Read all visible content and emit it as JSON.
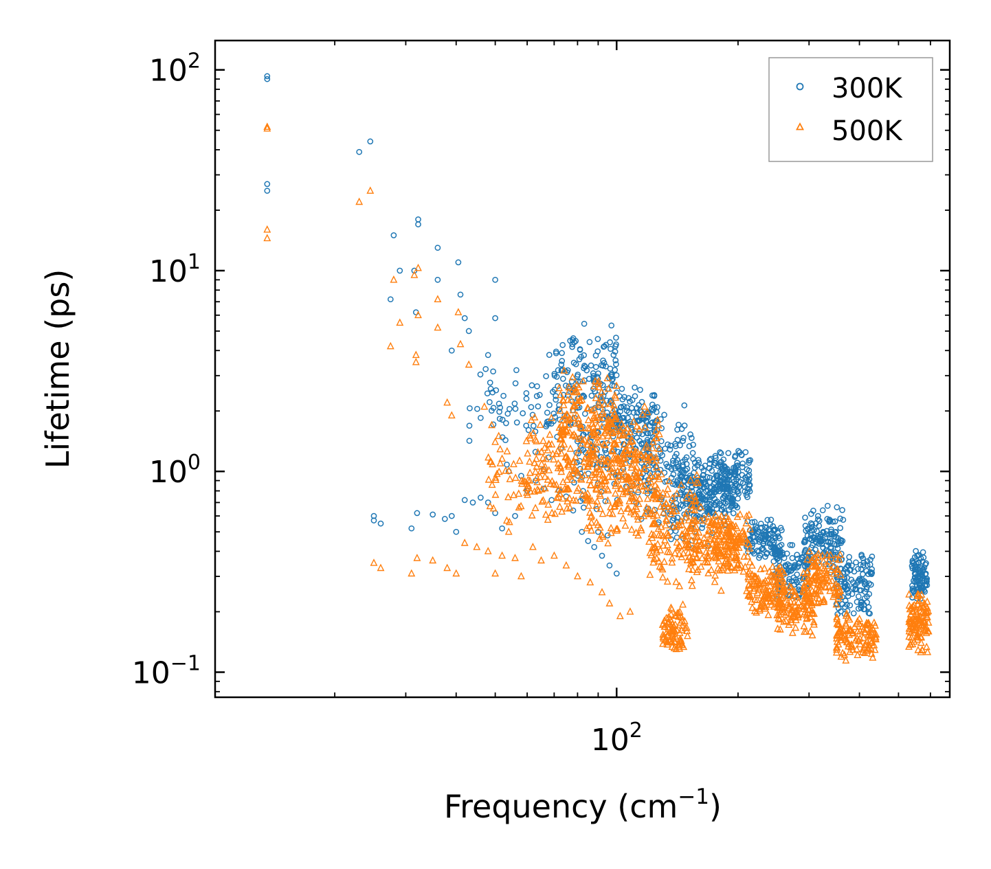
{
  "chart_data": {
    "type": "scatter",
    "title": "",
    "xlabel": "Frequency (cm",
    "xlabel_sup": "−1",
    "xlabel_suffix": ")",
    "ylabel": "Lifetime (ps)",
    "xscale": "log",
    "yscale": "log",
    "xlim": [
      10.1,
      670
    ],
    "ylim": [
      0.075,
      140
    ],
    "x_ticks": [
      {
        "value": 100,
        "base": "10",
        "exp": "2"
      }
    ],
    "y_ticks": [
      {
        "value": 0.1,
        "base": "10",
        "exp": "−1"
      },
      {
        "value": 1,
        "base": "10",
        "exp": "0"
      },
      {
        "value": 10,
        "base": "10",
        "exp": "1"
      },
      {
        "value": 100,
        "base": "10",
        "exp": "2"
      }
    ],
    "legend": {
      "position": "top-right"
    },
    "series": [
      {
        "name": "300K",
        "color": "#1f77b4",
        "marker": "circle",
        "points": [
          [
            13.6,
            93
          ],
          [
            13.6,
            90
          ],
          [
            13.6,
            27
          ],
          [
            13.6,
            25
          ],
          [
            23,
            39
          ],
          [
            24.5,
            44
          ],
          [
            28,
            15
          ],
          [
            29,
            10
          ],
          [
            27.5,
            7.2
          ],
          [
            31.5,
            10
          ],
          [
            31.8,
            6.2
          ],
          [
            32.2,
            18
          ],
          [
            32.2,
            17
          ],
          [
            36,
            13
          ],
          [
            36,
            9
          ],
          [
            39,
            4
          ],
          [
            40.5,
            11
          ],
          [
            41,
            7.6
          ],
          [
            42,
            5.8
          ],
          [
            43,
            5
          ],
          [
            48,
            3.8
          ],
          [
            50,
            9
          ],
          [
            50,
            5.8
          ],
          [
            25,
            0.6
          ],
          [
            25,
            0.57
          ],
          [
            26,
            0.55
          ],
          [
            31,
            0.52
          ],
          [
            32,
            0.62
          ],
          [
            35,
            0.61
          ],
          [
            37.5,
            0.58
          ],
          [
            39,
            0.6
          ],
          [
            40,
            0.5
          ],
          [
            42,
            0.72
          ],
          [
            44,
            0.7
          ],
          [
            46,
            0.74
          ],
          [
            48,
            0.7
          ],
          [
            50,
            0.62
          ],
          [
            52,
            0.52
          ],
          [
            54,
            1
          ],
          [
            56,
            0.6
          ],
          [
            58,
            0.95
          ],
          [
            60,
            0.8
          ],
          [
            63,
            0.9
          ],
          [
            66,
            0.82
          ],
          [
            69,
            0.72
          ],
          [
            72,
            0.8
          ],
          [
            75,
            0.75
          ],
          [
            82,
            0.5
          ],
          [
            85,
            0.45
          ],
          [
            88,
            0.42
          ],
          [
            92,
            0.38
          ],
          [
            96,
            0.34
          ],
          [
            100,
            0.31
          ],
          [
            90,
            0.5
          ],
          [
            95,
            0.48
          ]
        ],
        "ranges": [
          {
            "x": [
              43,
              75
            ],
            "y": [
              0.9,
              4.5
            ],
            "n": 70
          },
          {
            "x": [
              70,
              100
            ],
            "y": [
              1.5,
              5.6
            ],
            "n": 140
          },
          {
            "x": [
              78,
              128
            ],
            "y": [
              0.6,
              3.0
            ],
            "n": 170
          },
          {
            "x": [
              96,
              125
            ],
            "y": [
              1.2,
              2.7
            ],
            "n": 80
          },
          {
            "x": [
              115,
              155
            ],
            "y": [
              0.5,
              2.3
            ],
            "n": 110
          },
          {
            "x": [
              135,
              175
            ],
            "y": [
              0.4,
              1.2
            ],
            "n": 90
          },
          {
            "x": [
              140,
              200
            ],
            "y": [
              0.6,
              1.25
            ],
            "n": 110
          },
          {
            "x": [
              150,
              195
            ],
            "y": [
              0.5,
              1.0
            ],
            "n": 70
          },
          {
            "x": [
              170,
              215
            ],
            "y": [
              0.65,
              1.3
            ],
            "n": 110
          },
          {
            "x": [
              210,
              258
            ],
            "y": [
              0.35,
              0.6
            ],
            "n": 110
          },
          {
            "x": [
              245,
              300
            ],
            "y": [
              0.22,
              0.45
            ],
            "n": 110
          },
          {
            "x": [
              290,
              365
            ],
            "y": [
              0.3,
              0.7
            ],
            "n": 130
          },
          {
            "x": [
              350,
              430
            ],
            "y": [
              0.18,
              0.42
            ],
            "n": 120
          },
          {
            "x": [
              540,
              590
            ],
            "y": [
              0.22,
              0.42
            ],
            "n": 90
          }
        ]
      },
      {
        "name": "500K",
        "color": "#ff7f0e",
        "marker": "triangle",
        "points": [
          [
            13.6,
            52
          ],
          [
            13.6,
            51
          ],
          [
            13.6,
            16
          ],
          [
            13.6,
            14.5
          ],
          [
            23,
            22
          ],
          [
            24.5,
            25
          ],
          [
            27.5,
            4.2
          ],
          [
            28,
            9
          ],
          [
            29,
            5.5
          ],
          [
            31.5,
            9.5
          ],
          [
            31.8,
            3.8
          ],
          [
            31.8,
            3.5
          ],
          [
            32.2,
            10.3
          ],
          [
            32.2,
            6
          ],
          [
            36,
            7.2
          ],
          [
            36,
            5.2
          ],
          [
            38,
            2.2
          ],
          [
            39,
            1.9
          ],
          [
            40.5,
            6.2
          ],
          [
            41,
            4.3
          ],
          [
            43,
            3.4
          ],
          [
            47,
            2.1
          ],
          [
            49,
            1.7
          ],
          [
            50,
            1.4
          ],
          [
            51,
            1.5
          ],
          [
            25,
            0.35
          ],
          [
            26,
            0.33
          ],
          [
            31,
            0.31
          ],
          [
            32,
            0.37
          ],
          [
            35,
            0.36
          ],
          [
            38,
            0.33
          ],
          [
            40,
            0.31
          ],
          [
            42,
            0.44
          ],
          [
            45,
            0.42
          ],
          [
            48,
            0.4
          ],
          [
            50,
            0.31
          ],
          [
            52,
            0.38
          ],
          [
            54,
            0.5
          ],
          [
            56,
            0.37
          ],
          [
            58,
            0.3
          ],
          [
            62,
            0.42
          ],
          [
            65,
            0.36
          ],
          [
            70,
            0.38
          ],
          [
            75,
            0.34
          ],
          [
            80,
            0.3
          ],
          [
            86,
            0.28
          ],
          [
            92,
            0.25
          ],
          [
            96,
            0.22
          ],
          [
            102,
            0.19
          ],
          [
            108,
            0.2
          ]
        ],
        "ranges": [
          {
            "x": [
              48,
              78
            ],
            "y": [
              0.5,
              1.6
            ],
            "n": 80
          },
          {
            "x": [
              60,
              96
            ],
            "y": [
              0.45,
              2.2
            ],
            "n": 110
          },
          {
            "x": [
              72,
              100
            ],
            "y": [
              0.9,
              3.4
            ],
            "n": 150
          },
          {
            "x": [
              84,
              115
            ],
            "y": [
              0.4,
              2.0
            ],
            "n": 150
          },
          {
            "x": [
              100,
              128
            ],
            "y": [
              0.5,
              2.2
            ],
            "n": 120
          },
          {
            "x": [
              120,
              160
            ],
            "y": [
              0.25,
              1.1
            ],
            "n": 120
          },
          {
            "x": [
              130,
              150
            ],
            "y": [
              0.12,
              0.22
            ],
            "n": 80
          },
          {
            "x": [
              148,
              200
            ],
            "y": [
              0.25,
              0.7
            ],
            "n": 120
          },
          {
            "x": [
              170,
              215
            ],
            "y": [
              0.28,
              0.65
            ],
            "n": 120
          },
          {
            "x": [
              210,
              260
            ],
            "y": [
              0.19,
              0.35
            ],
            "n": 120
          },
          {
            "x": [
              250,
              310
            ],
            "y": [
              0.15,
              0.28
            ],
            "n": 110
          },
          {
            "x": [
              290,
              360
            ],
            "y": [
              0.2,
              0.42
            ],
            "n": 120
          },
          {
            "x": [
              350,
              440
            ],
            "y": [
              0.11,
              0.2
            ],
            "n": 120
          },
          {
            "x": [
              530,
              595
            ],
            "y": [
              0.12,
              0.26
            ],
            "n": 110
          }
        ]
      }
    ]
  }
}
